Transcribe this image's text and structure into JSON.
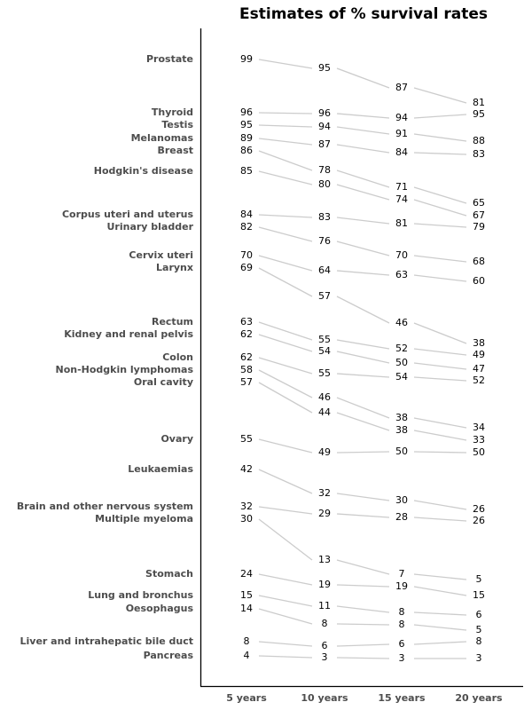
{
  "chart_data": {
    "type": "slope",
    "title": "Estimates of % survival rates",
    "xlabel": "",
    "ylabel": "",
    "grid": false,
    "categories": [
      "5 years",
      "10 years",
      "15 years",
      "20 years"
    ],
    "series": [
      {
        "name": "Prostate",
        "values": [
          99,
          95,
          87,
          81
        ]
      },
      {
        "name": "Thyroid",
        "values": [
          96,
          96,
          94,
          95
        ]
      },
      {
        "name": "Testis",
        "values": [
          95,
          94,
          91,
          88
        ]
      },
      {
        "name": "Melanomas",
        "values": [
          89,
          87,
          84,
          83
        ]
      },
      {
        "name": "Breast",
        "values": [
          86,
          78,
          71,
          65
        ]
      },
      {
        "name": "Hodgkin's disease",
        "values": [
          85,
          80,
          74,
          67
        ]
      },
      {
        "name": "Corpus uteri and uterus",
        "values": [
          84,
          83,
          81,
          79
        ]
      },
      {
        "name": "Urinary bladder",
        "values": [
          82,
          76,
          70,
          68
        ]
      },
      {
        "name": "Cervix uteri",
        "values": [
          70,
          64,
          63,
          60
        ]
      },
      {
        "name": "Larynx",
        "values": [
          69,
          57,
          46,
          38
        ]
      },
      {
        "name": "Rectum",
        "values": [
          63,
          55,
          52,
          49
        ]
      },
      {
        "name": "Kidney and renal pelvis",
        "values": [
          62,
          54,
          50,
          47
        ]
      },
      {
        "name": "Colon",
        "values": [
          62,
          55,
          54,
          52
        ]
      },
      {
        "name": "Non-Hodgkin lymphomas",
        "values": [
          58,
          46,
          38,
          34
        ]
      },
      {
        "name": "Oral cavity",
        "values": [
          57,
          44,
          38,
          33
        ]
      },
      {
        "name": "Ovary",
        "values": [
          55,
          49,
          50,
          50
        ]
      },
      {
        "name": "Leukaemias",
        "values": [
          42,
          32,
          30,
          26
        ]
      },
      {
        "name": "Brain and other nervous system",
        "values": [
          32,
          29,
          28,
          26
        ]
      },
      {
        "name": "Multiple myeloma",
        "values": [
          30,
          13,
          7,
          5
        ]
      },
      {
        "name": "Stomach",
        "values": [
          24,
          19,
          19,
          15
        ]
      },
      {
        "name": "Lung and bronchus",
        "values": [
          15,
          11,
          8,
          6
        ]
      },
      {
        "name": "Oesophagus",
        "values": [
          14,
          8,
          8,
          5
        ]
      },
      {
        "name": "Liver and intrahepatic bile duct",
        "values": [
          8,
          6,
          6,
          8
        ]
      },
      {
        "name": "Pancreas",
        "values": [
          4,
          3,
          3,
          3
        ]
      }
    ],
    "colors": {
      "line": "#cccccc",
      "label": "#4d4d4d",
      "axis": "#000000"
    }
  }
}
